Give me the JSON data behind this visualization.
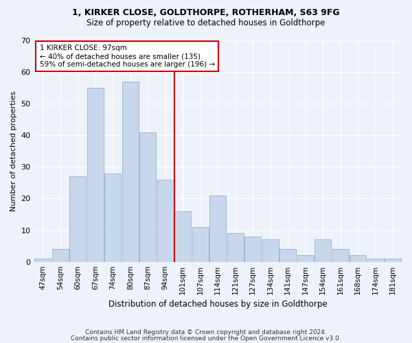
{
  "title1": "1, KIRKER CLOSE, GOLDTHORPE, ROTHERHAM, S63 9FG",
  "title2": "Size of property relative to detached houses in Goldthorpe",
  "xlabel": "Distribution of detached houses by size in Goldthorpe",
  "ylabel": "Number of detached properties",
  "categories": [
    "47sqm",
    "54sqm",
    "60sqm",
    "67sqm",
    "74sqm",
    "80sqm",
    "87sqm",
    "94sqm",
    "101sqm",
    "107sqm",
    "114sqm",
    "121sqm",
    "127sqm",
    "134sqm",
    "141sqm",
    "147sqm",
    "154sqm",
    "161sqm",
    "168sqm",
    "174sqm",
    "181sqm"
  ],
  "bar_values": [
    1,
    4,
    27,
    55,
    28,
    57,
    41,
    26,
    16,
    11,
    21,
    9,
    8,
    7,
    4,
    2,
    7,
    4,
    2,
    1,
    1
  ],
  "highlight_index": 7,
  "annotation_line1": "1 KIRKER CLOSE: 97sqm",
  "annotation_line2": "← 40% of detached houses are smaller (135)",
  "annotation_line3": "59% of semi-detached houses are larger (196) →",
  "bar_color": "#c8d8ec",
  "bar_edge_color": "#9ab8d0",
  "highlight_line_color": "#cc0000",
  "annotation_box_edge": "#cc0000",
  "ylim": [
    0,
    70
  ],
  "yticks": [
    0,
    10,
    20,
    30,
    40,
    50,
    60,
    70
  ],
  "background_color": "#eef2fb",
  "footer1": "Contains HM Land Registry data © Crown copyright and database right 2024.",
  "footer2": "Contains public sector information licensed under the Open Government Licence v3.0."
}
